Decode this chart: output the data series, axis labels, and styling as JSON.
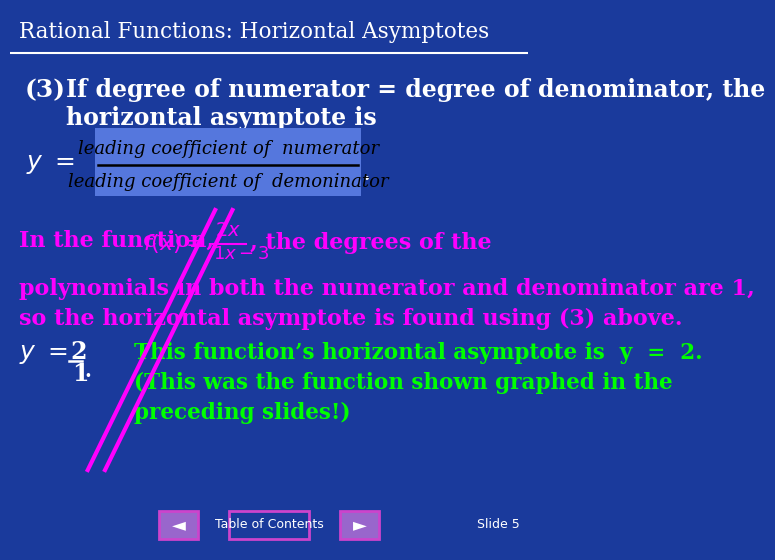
{
  "title": "Rational Functions: Horizontal Asymptotes",
  "bg_color": "#1a3a9c",
  "slide_number": "Slide 5",
  "content": {
    "item3_label": "(3)",
    "item3_text1": "If degree of numerator = degree of denominator, the",
    "item3_text2": "horizontal asymptote is",
    "paragraph1a": "In the function,",
    "paragraph1b": ", the degrees of the",
    "paragraph2": "polynomials in both the numerator and denominator are 1,",
    "paragraph3": "so the horizontal asymptote is found using (3) above.",
    "green_text1": "This function’s horizontal asymptote is  y  =  2.",
    "green_text2": "(This was the function shown graphed in the",
    "green_text3": "preceding slides!)",
    "table_of_contents": "Table of Contents"
  },
  "colors": {
    "white": "#ffffff",
    "black": "#000000",
    "magenta": "#ff00ff",
    "green": "#00ff00",
    "nav_button_bg": "#9966cc",
    "nav_button_border": "#cc44cc",
    "toc_border": "#cc44cc"
  }
}
